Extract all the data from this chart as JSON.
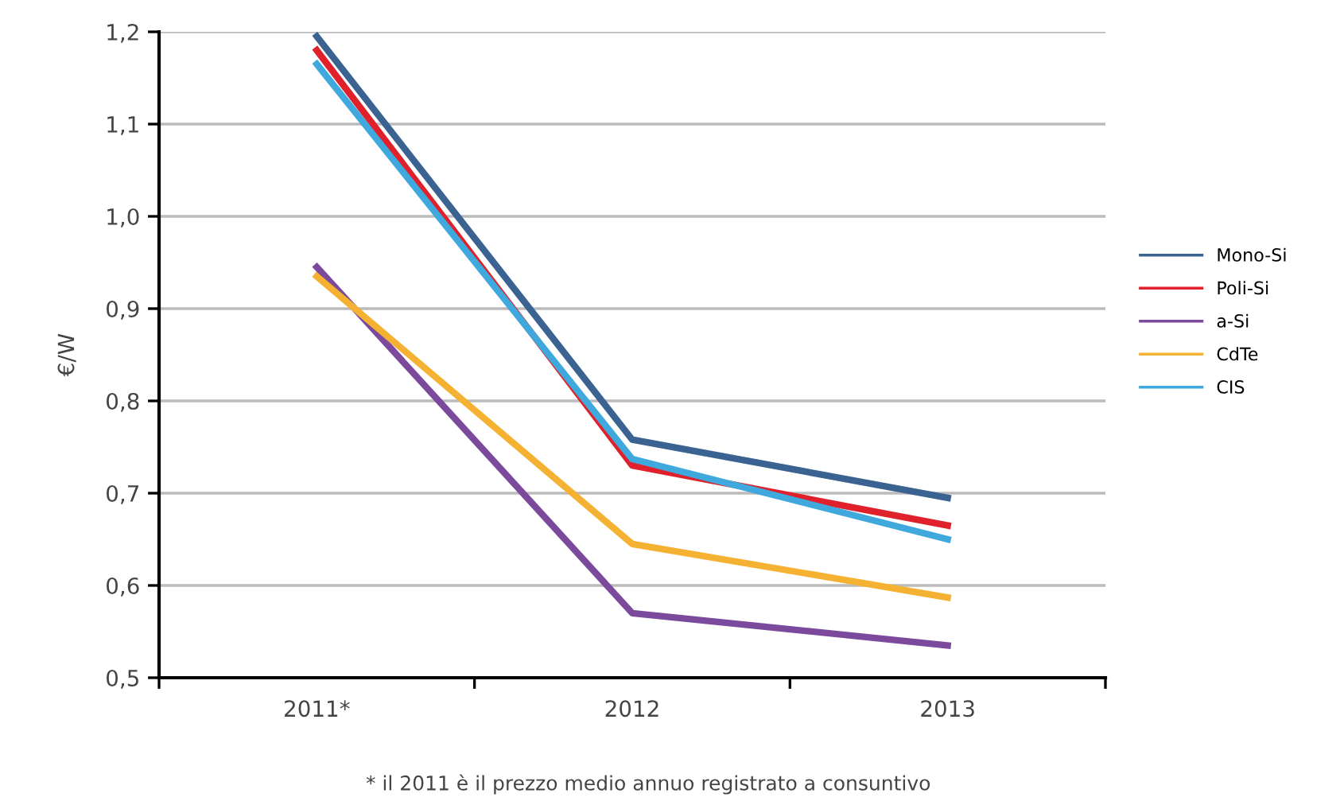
{
  "chart_data": {
    "type": "line",
    "ylabel": "€/W",
    "categories": [
      "2011*",
      "2012",
      "2013"
    ],
    "series": [
      {
        "name": "Mono-Si",
        "color": "#3a6391",
        "values": [
          1.195,
          0.758,
          0.695
        ]
      },
      {
        "name": "Poli-Si",
        "color": "#e0202a",
        "values": [
          1.18,
          0.73,
          0.665
        ]
      },
      {
        "name": "a-Si",
        "color": "#7b4a9c",
        "values": [
          0.945,
          0.57,
          0.535
        ]
      },
      {
        "name": "CdTe",
        "color": "#f5b132",
        "values": [
          0.935,
          0.645,
          0.587
        ]
      },
      {
        "name": "CIS",
        "color": "#3fa8dc",
        "values": [
          1.165,
          0.737,
          0.65
        ]
      }
    ],
    "ylim": [
      0.5,
      1.2
    ],
    "yticks": [
      {
        "value": 0.5,
        "label": "0,5"
      },
      {
        "value": 0.6,
        "label": "0,6"
      },
      {
        "value": 0.7,
        "label": "0,7"
      },
      {
        "value": 0.8,
        "label": "0,8"
      },
      {
        "value": 0.9,
        "label": "0,9"
      },
      {
        "value": 1.0,
        "label": "1,0"
      },
      {
        "value": 1.1,
        "label": "1,1"
      },
      {
        "value": 1.2,
        "label": "1,2"
      }
    ],
    "grid": "y",
    "legend": "right",
    "marker": "none",
    "line_style": "solid",
    "annotations": [
      "* il 2011 è il prezzo medio annuo registrato a consuntivo"
    ]
  }
}
